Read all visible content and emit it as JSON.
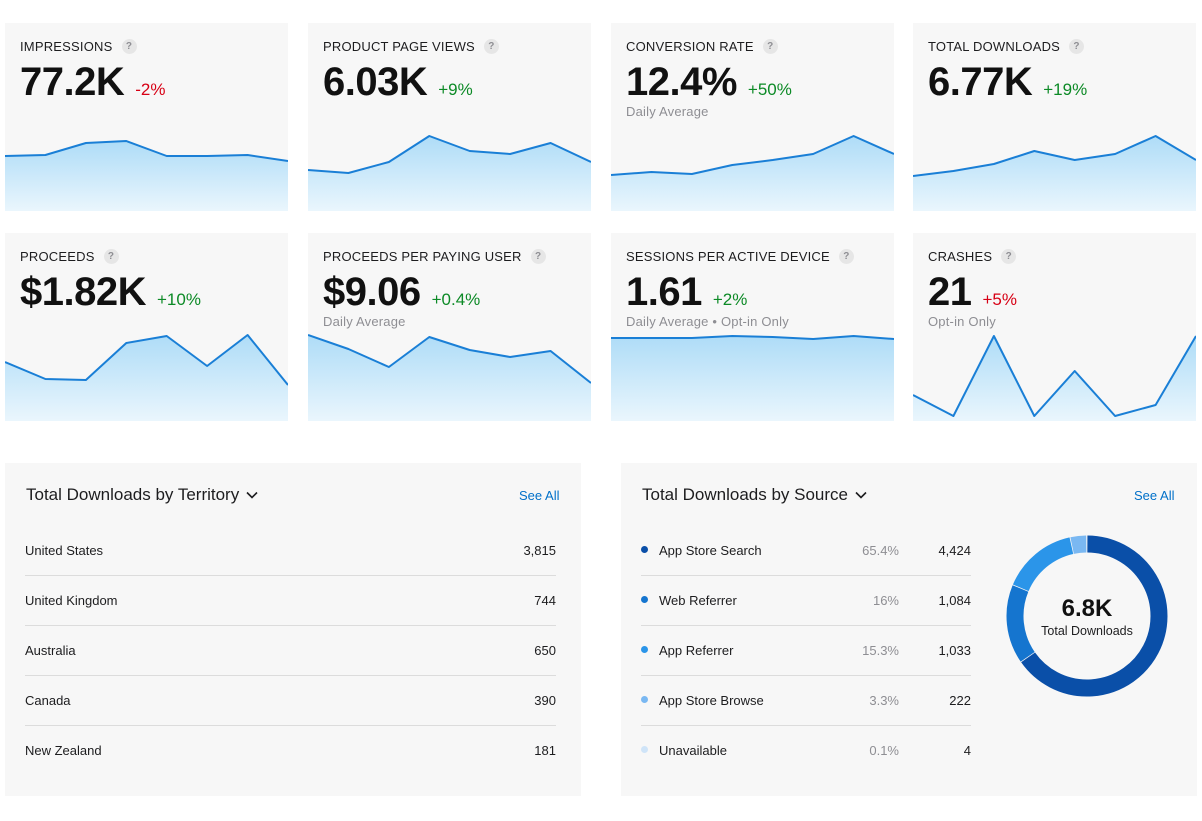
{
  "colors": {
    "line": "#1a7fd6",
    "fill_top": "#aedcf7",
    "fill_bottom": "#eaf6fd",
    "positive": "#0c8a26",
    "negative": "#d70015",
    "link": "#0070c9"
  },
  "help_icon": "?",
  "cards": [
    {
      "title": "IMPRESSIONS",
      "value": "77.2K",
      "delta": "-2%",
      "trend": "negative",
      "subtitle": "",
      "spark": [
        33,
        32,
        20,
        18,
        33,
        33,
        32,
        38
      ]
    },
    {
      "title": "PRODUCT PAGE VIEWS",
      "value": "6.03K",
      "delta": "+9%",
      "trend": "positive",
      "subtitle": "",
      "spark": [
        47,
        50,
        39,
        13,
        28,
        31,
        20,
        39
      ]
    },
    {
      "title": "CONVERSION RATE",
      "value": "12.4%",
      "delta": "+50%",
      "trend": "positive",
      "subtitle": "Daily Average",
      "spark": [
        52,
        49,
        51,
        42,
        37,
        31,
        13,
        31
      ]
    },
    {
      "title": "TOTAL DOWNLOADS",
      "value": "6.77K",
      "delta": "+19%",
      "trend": "positive",
      "subtitle": "",
      "spark": [
        53,
        48,
        41,
        28,
        37,
        31,
        13,
        37
      ]
    },
    {
      "title": "PROCEEDS",
      "value": "$1.82K",
      "delta": "+10%",
      "trend": "positive",
      "subtitle": "",
      "spark": [
        29,
        46,
        47,
        10,
        3,
        33,
        2,
        52
      ]
    },
    {
      "title": "PROCEEDS PER PAYING USER",
      "value": "$9.06",
      "delta": "+0.4%",
      "trend": "positive",
      "subtitle": "Daily Average",
      "spark": [
        2,
        16,
        34,
        4,
        17,
        24,
        18,
        50
      ]
    },
    {
      "title": "SESSIONS PER ACTIVE DEVICE",
      "value": "1.61",
      "delta": "+2%",
      "trend": "positive",
      "subtitle": "Daily Average • Opt-in Only",
      "spark": [
        5,
        5,
        5,
        3,
        4,
        6,
        3,
        6
      ]
    },
    {
      "title": "CRASHES",
      "value": "21",
      "delta": "+5%",
      "trend": "negative",
      "subtitle": "Opt-in Only",
      "spark": [
        62,
        83,
        3,
        83,
        38,
        83,
        72,
        3
      ]
    }
  ],
  "territory": {
    "title": "Total Downloads by Territory",
    "see_all": "See All",
    "rows": [
      {
        "name": "United States",
        "value": "3,815"
      },
      {
        "name": "United Kingdom",
        "value": "744"
      },
      {
        "name": "Australia",
        "value": "650"
      },
      {
        "name": "Canada",
        "value": "390"
      },
      {
        "name": "New Zealand",
        "value": "181"
      }
    ]
  },
  "source": {
    "title": "Total Downloads by Source",
    "see_all": "See All",
    "rows": [
      {
        "name": "App Store Search",
        "percent": "65.4%",
        "value": "4,424",
        "share": 65.4,
        "color": "#0a4fa8"
      },
      {
        "name": "Web Referrer",
        "percent": "16%",
        "value": "1,084",
        "share": 16,
        "color": "#1575cf"
      },
      {
        "name": "App Referrer",
        "percent": "15.3%",
        "value": "1,033",
        "share": 15.3,
        "color": "#2b95e9"
      },
      {
        "name": "App Store Browse",
        "percent": "3.3%",
        "value": "222",
        "share": 3.3,
        "color": "#7ab8f2"
      },
      {
        "name": "Unavailable",
        "percent": "0.1%",
        "value": "4",
        "share": 0.1,
        "color": "#cfe4f8"
      }
    ],
    "total_value": "6.8K",
    "total_label": "Total Downloads"
  }
}
